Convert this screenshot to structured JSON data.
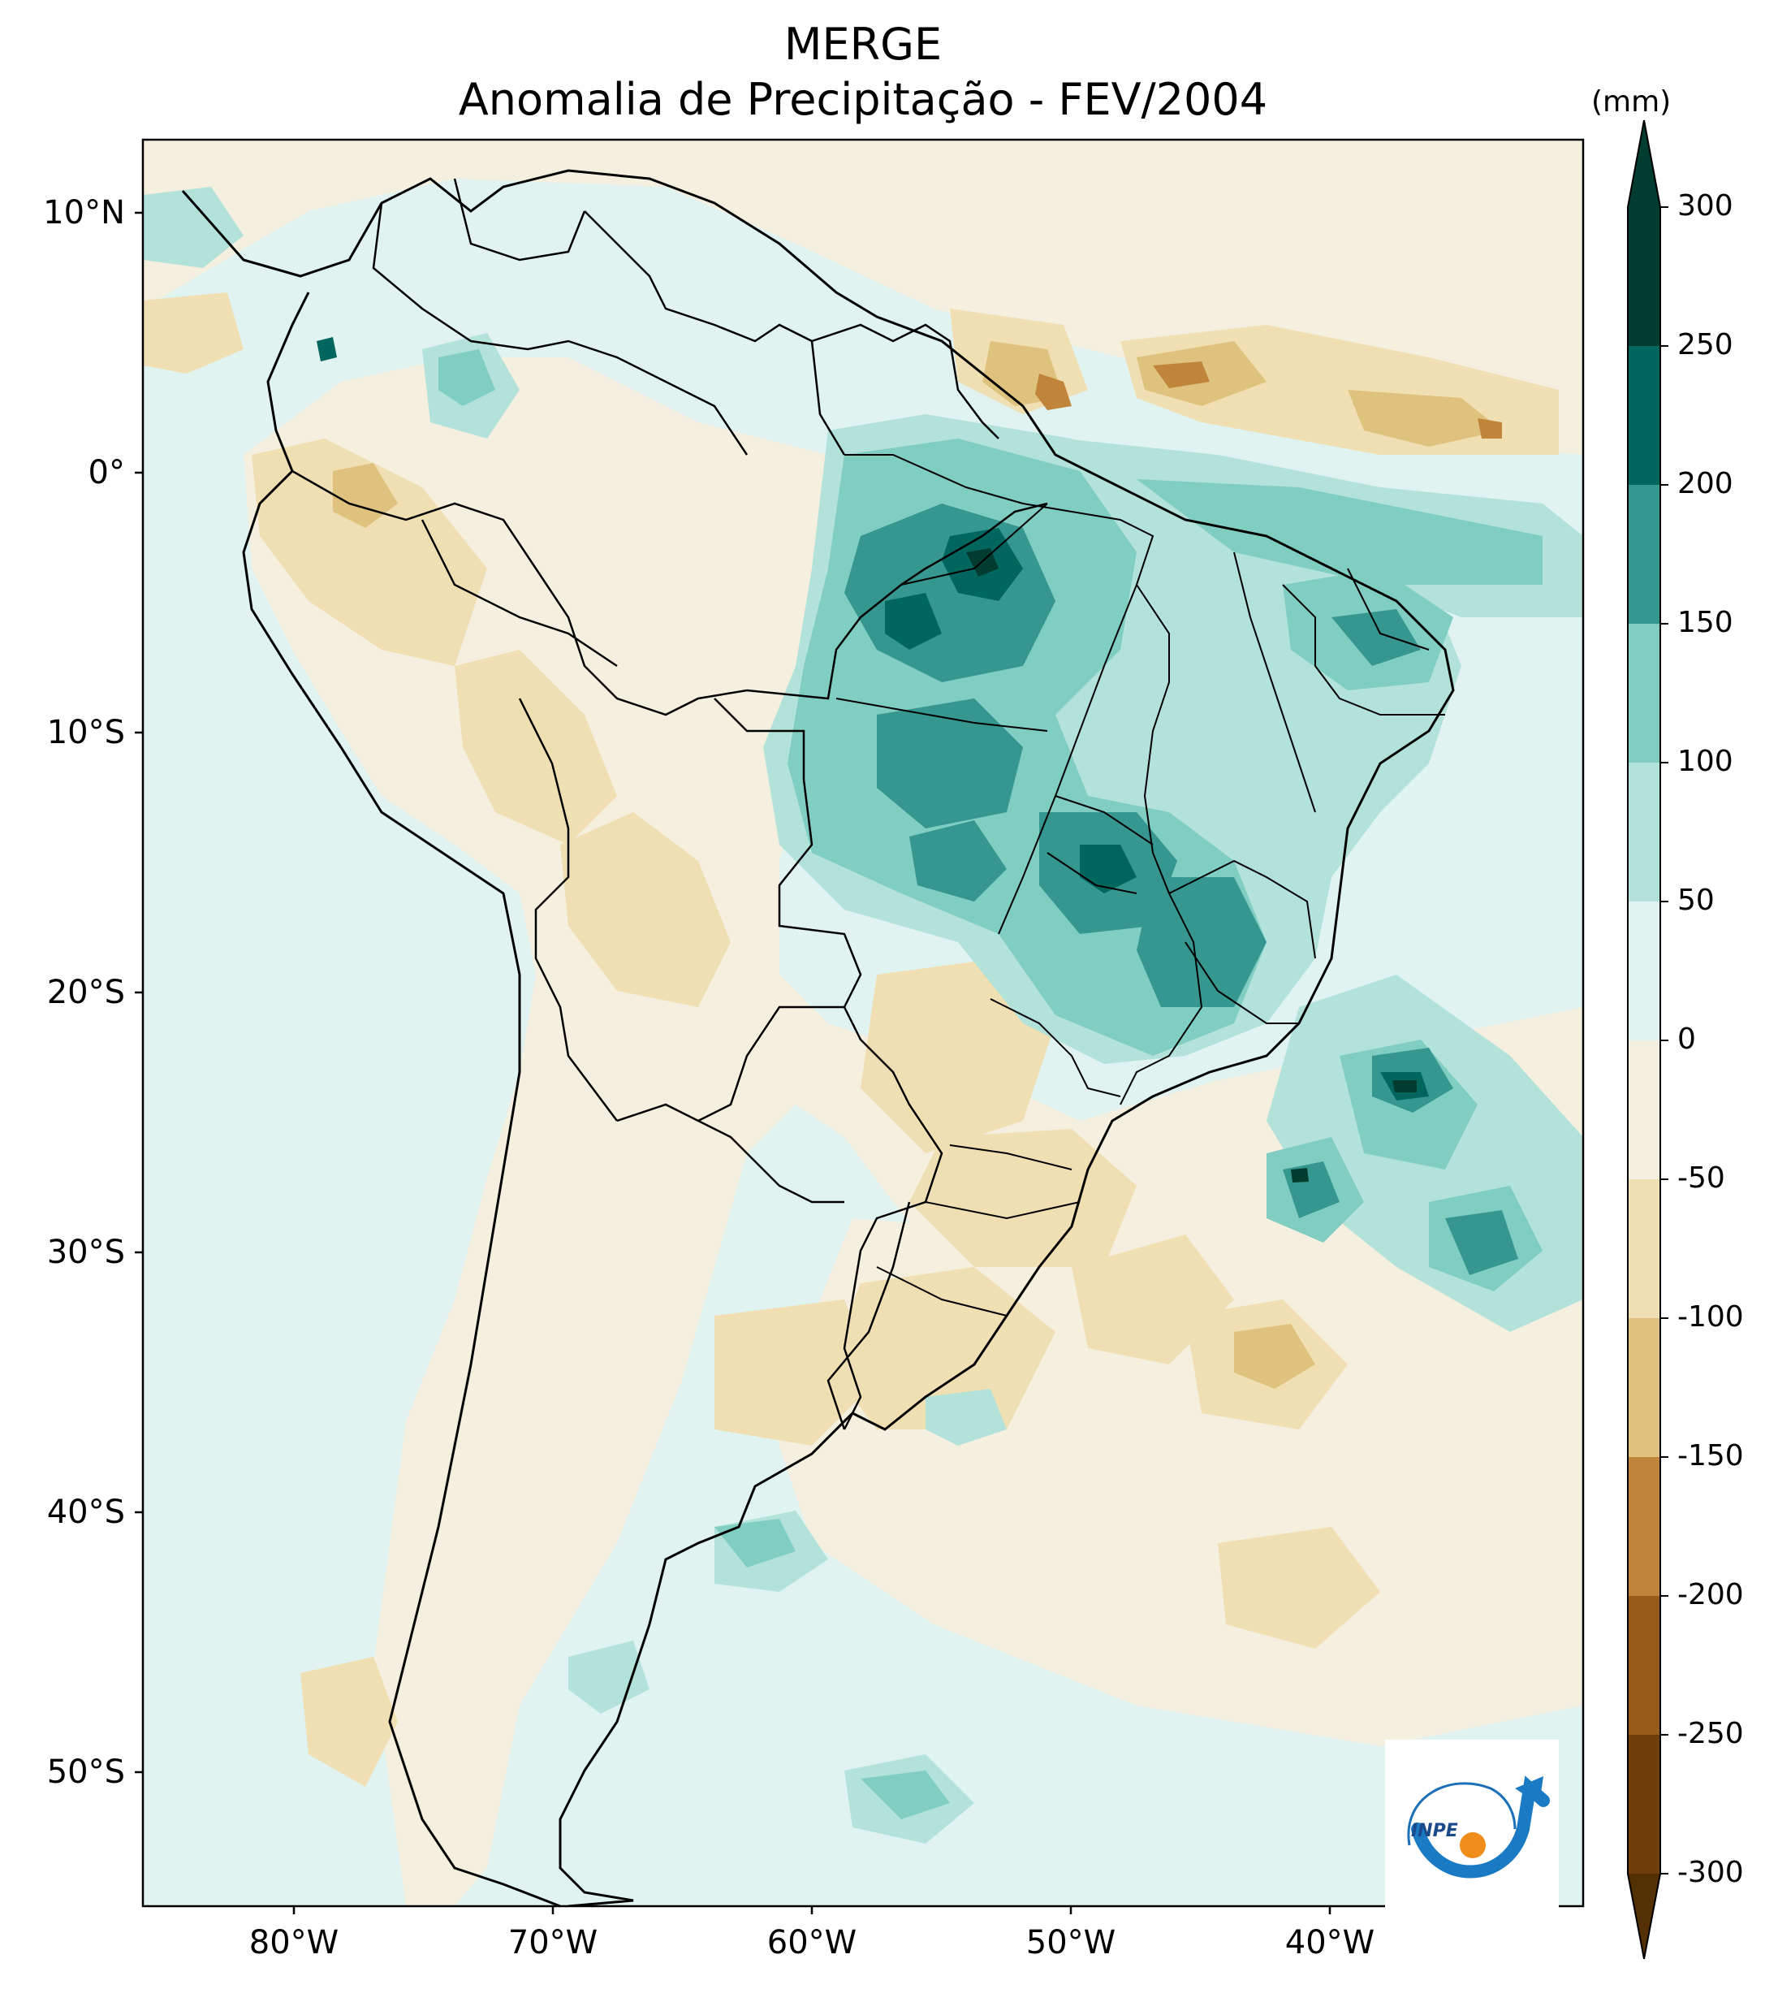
{
  "title": {
    "line1": "MERGE",
    "line2": "Anomalia de Precipitação - FEV/2004"
  },
  "axes": {
    "lat_labels": [
      "10°N",
      "0°",
      "10°S",
      "20°S",
      "30°S",
      "40°S",
      "50°S"
    ],
    "lon_labels": [
      "80°W",
      "70°W",
      "60°W",
      "50°W",
      "40°W"
    ]
  },
  "colorbar": {
    "unit": "(mm)",
    "tick_labels": [
      "300",
      "250",
      "200",
      "150",
      "100",
      "50",
      "0",
      "-50",
      "-100",
      "-150",
      "-200",
      "-250",
      "-300"
    ],
    "colors": [
      "#003c30",
      "#01665e",
      "#35978f",
      "#80cdc1",
      "#b2e2da",
      "#e0f3f0",
      "#f5efe0",
      "#f0dfb2",
      "#dfc27d",
      "#c0843a",
      "#975c1a",
      "#6e3f0a",
      "#543005"
    ]
  },
  "logo": {
    "text": "INPE"
  },
  "palette": {
    "ocean_background": "#e0f3f0",
    "land_neutral": "#f5efe0",
    "positive_mid": "#80cdc1",
    "positive_strong": "#35978f",
    "positive_max": "#01665e",
    "negative_weak": "#f0dfb2",
    "negative_mid": "#dfc27d",
    "negative_strong": "#c0843a"
  }
}
